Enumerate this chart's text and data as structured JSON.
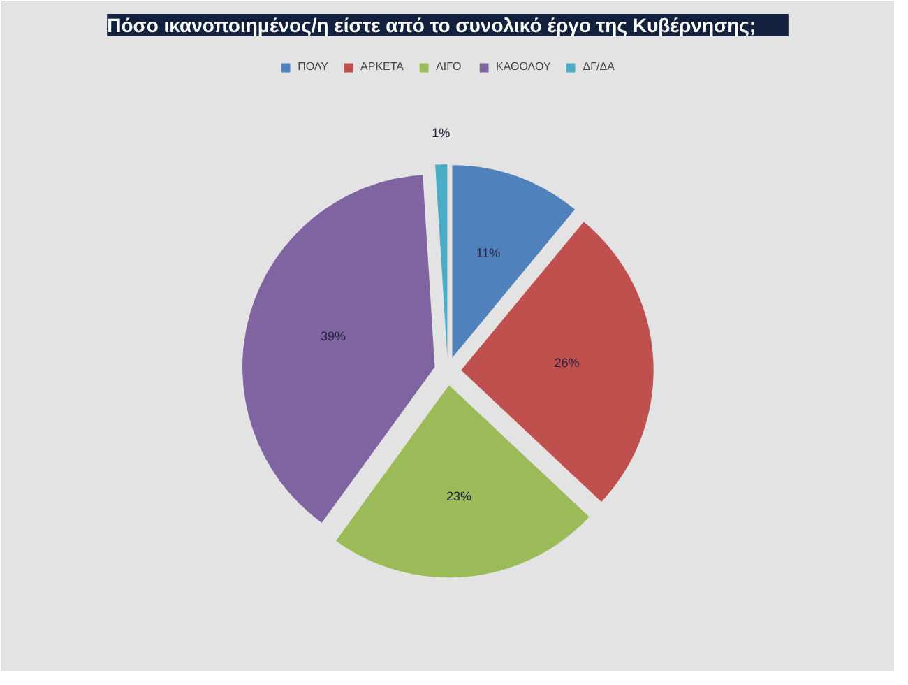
{
  "chart_data": {
    "type": "pie",
    "title": "Πόσο ικανοποιημένος/η είστε από το συνολικό έργο της Κυβέρνησης;",
    "categories": [
      "ΠΟΛΥ",
      "ΑΡΚΕΤΑ",
      "ΛΙΓΟ",
      "ΚΑΘΟΛΟΥ",
      "ΔΓ/ΔΑ"
    ],
    "values": [
      11,
      26,
      23,
      39,
      1
    ],
    "colors": [
      "#4f81bd",
      "#c0504d",
      "#9bbb59",
      "#8064a2",
      "#4bacc6"
    ],
    "value_labels": [
      "11%",
      "26%",
      "23%",
      "39%",
      "1%"
    ],
    "legend": "top"
  }
}
